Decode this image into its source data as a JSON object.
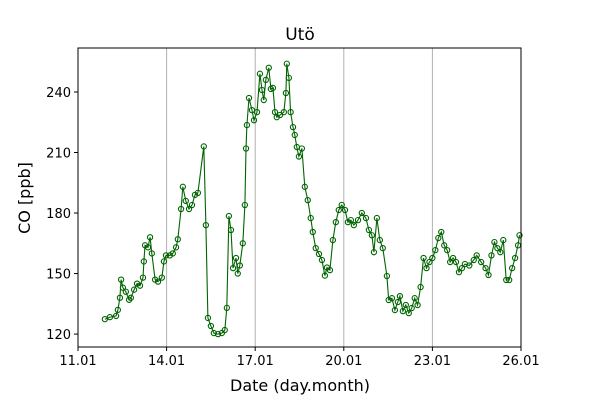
{
  "chart_data": {
    "type": "line",
    "title": "Utö",
    "xlabel": "Date (day.month)",
    "ylabel": "CO [ppb]",
    "x_unit": "day of January",
    "xlim": [
      11,
      26
    ],
    "ylim": [
      113.6,
      261.8
    ],
    "x_ticks": [
      11,
      14,
      17,
      20,
      23,
      26
    ],
    "x_tick_labels": [
      "11.01",
      "14.01",
      "17.01",
      "20.01",
      "23.01",
      "26.01"
    ],
    "y_ticks": [
      120,
      150,
      180,
      210,
      240
    ],
    "y_tick_labels": [
      "120",
      "150",
      "180",
      "210",
      "240"
    ],
    "grid": "vertical lines at x ticks",
    "color": "#006400",
    "marker": "hollow circle",
    "series": [
      {
        "x": [
          11.91,
          12.08,
          12.29,
          12.35,
          12.42,
          12.46,
          12.52,
          12.62,
          12.73,
          12.79,
          12.9,
          13.0,
          13.1,
          13.2,
          13.23,
          13.27,
          13.37,
          13.44,
          13.5,
          13.61,
          13.71,
          13.84,
          13.91,
          13.98,
          14.11,
          14.21,
          14.32,
          14.38,
          14.49,
          14.55,
          14.65,
          14.76,
          14.86,
          14.96,
          15.06,
          15.26,
          15.33,
          15.4,
          15.5,
          15.6,
          15.74,
          15.87,
          15.97,
          16.04,
          16.11,
          16.18,
          16.25,
          16.35,
          16.41,
          16.48,
          16.58,
          16.65,
          16.69,
          16.72,
          16.79,
          16.89,
          16.96,
          17.06,
          17.16,
          17.23,
          17.29,
          17.36,
          17.46,
          17.53,
          17.6,
          17.67,
          17.73,
          17.84,
          17.97,
          18.04,
          18.07,
          18.14,
          18.2,
          18.28,
          18.34,
          18.41,
          18.48,
          18.58,
          18.68,
          18.78,
          18.88,
          18.95,
          19.05,
          19.16,
          19.26,
          19.36,
          19.43,
          19.53,
          19.63,
          19.73,
          19.83,
          19.93,
          20.04,
          20.14,
          20.24,
          20.34,
          20.48,
          20.61,
          20.75,
          20.85,
          20.95,
          21.02,
          21.12,
          21.22,
          21.32,
          21.46,
          21.52,
          21.63,
          21.73,
          21.83,
          21.9,
          22.0,
          22.1,
          22.2,
          22.3,
          22.4,
          22.5,
          22.6,
          22.7,
          22.8,
          22.9,
          23.0,
          23.1,
          23.2,
          23.3,
          23.4,
          23.5,
          23.6,
          23.7,
          23.8,
          23.9,
          24.0,
          24.1,
          24.25,
          24.4,
          24.5,
          24.65,
          24.8,
          24.9,
          25.0,
          25.1,
          25.2,
          25.3,
          25.4,
          25.5,
          25.6,
          25.7,
          25.8,
          25.9,
          25.95
        ],
        "y": [
          127.4,
          128.4,
          129,
          132,
          138,
          147,
          143,
          141,
          137,
          138,
          142,
          145,
          144,
          148,
          156,
          164,
          163,
          168,
          160,
          147,
          146,
          148,
          156,
          159,
          159,
          160,
          163,
          167,
          182,
          193,
          186,
          182,
          184,
          189,
          190,
          213,
          174,
          128,
          124,
          120.5,
          120,
          120.5,
          122,
          133,
          178.5,
          171.6,
          152.7,
          157.7,
          150,
          154,
          165,
          184,
          212,
          223.6,
          237,
          231,
          226,
          230,
          249,
          241,
          236,
          246,
          252,
          241.5,
          242,
          230,
          227.5,
          228.6,
          230,
          239.5,
          254,
          247,
          230,
          222.6,
          218.7,
          212.7,
          208,
          212,
          193,
          186.4,
          177.5,
          170.6,
          162.6,
          159.7,
          156.7,
          149,
          153,
          151.7,
          166.6,
          175.5,
          181.5,
          184,
          181.5,
          175.5,
          176.5,
          174,
          176.5,
          180,
          177.5,
          171.6,
          169,
          160.6,
          177.5,
          166.6,
          162.6,
          148.8,
          136.9,
          137.8,
          131.9,
          135.9,
          138.8,
          131.4,
          134.4,
          130.4,
          132.9,
          137.8,
          134.4,
          143.3,
          157.7,
          152.7,
          155.7,
          157.7,
          161.6,
          167.6,
          170.6,
          164,
          161.6,
          155.7,
          157.7,
          155.7,
          150.7,
          152.7,
          154.7,
          154,
          156.7,
          159,
          155.7,
          152.7,
          149.3,
          159,
          165.6,
          162.6,
          160.6,
          166.6,
          146.8,
          146.8,
          152.7,
          157.7,
          164,
          169
        ]
      }
    ]
  }
}
